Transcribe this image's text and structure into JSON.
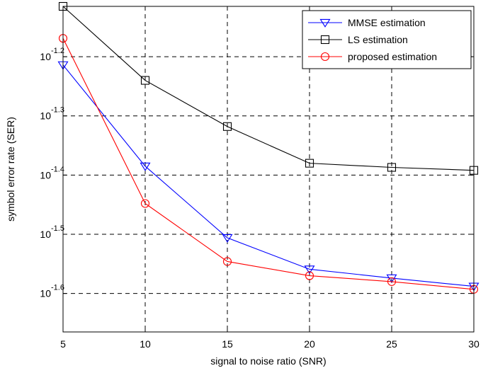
{
  "chart_data": {
    "type": "line",
    "xlabel": "signal to noise ratio (SNR)",
    "ylabel": "symbol error rate (SER)",
    "y_scale": "log",
    "xlim": [
      5,
      30
    ],
    "ylim_log10": [
      -1.665,
      -1.115
    ],
    "x_ticks": [
      "5",
      "10",
      "15",
      "20",
      "25",
      "30"
    ],
    "y_ticks": [
      {
        "base": "10",
        "exponent": "-1.2",
        "log10_value": -1.2
      },
      {
        "base": "10",
        "exponent": "-1.3",
        "log10_value": -1.3
      },
      {
        "base": "10",
        "exponent": "-1.4",
        "log10_value": -1.4
      },
      {
        "base": "10",
        "exponent": "-1.5",
        "log10_value": -1.5
      },
      {
        "base": "10",
        "exponent": "-1.6",
        "log10_value": -1.6
      }
    ],
    "grid": true,
    "grid_style": "dashed",
    "legend_position": "top-right",
    "x": [
      5,
      10,
      15,
      20,
      25,
      30
    ],
    "series": [
      {
        "name": "MMSE estimation",
        "color": "#0000ff",
        "marker": "triangle-down",
        "log10_values": [
          -1.214,
          -1.385,
          -1.506,
          -1.559,
          -1.574,
          -1.588
        ]
      },
      {
        "name": "LS estimation",
        "color": "#000000",
        "marker": "square",
        "log10_values": [
          -1.115,
          -1.24,
          -1.318,
          -1.38,
          -1.387,
          -1.392
        ]
      },
      {
        "name": "proposed estimation",
        "color": "#ff0000",
        "marker": "circle",
        "log10_values": [
          -1.169,
          -1.448,
          -1.546,
          -1.57,
          -1.58,
          -1.593
        ]
      }
    ]
  }
}
